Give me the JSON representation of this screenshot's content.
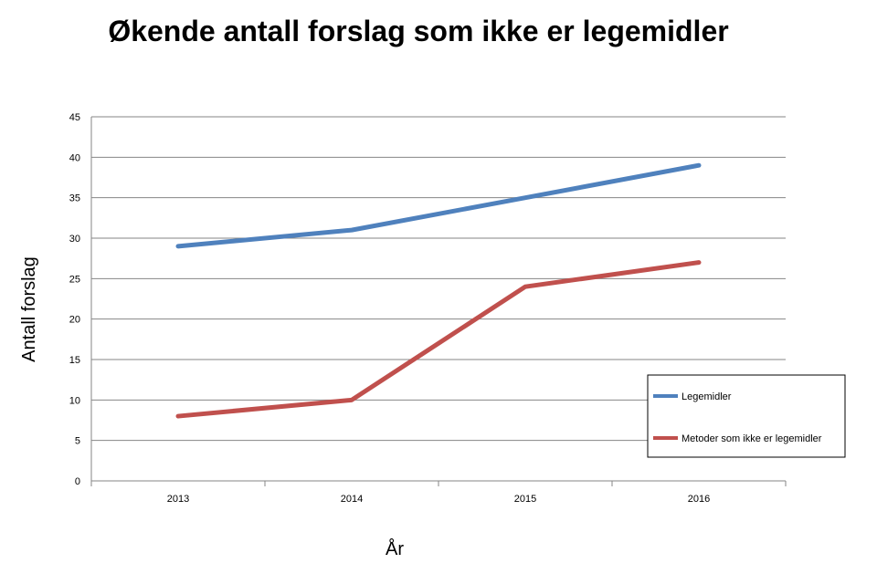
{
  "chart_data": {
    "type": "line",
    "title": "Økende antall forslag som ikke er legemidler",
    "xlabel": "År",
    "ylabel": "Antall forslag",
    "categories": [
      "2013",
      "2014",
      "2015",
      "2016"
    ],
    "ylim": [
      0,
      45
    ],
    "yticks": [
      0,
      5,
      10,
      15,
      20,
      25,
      30,
      35,
      40,
      45
    ],
    "grid": true,
    "legend_position": "right",
    "series": [
      {
        "name": "Legemidler",
        "values": [
          29,
          31,
          35,
          39
        ],
        "color": "#4F81BD"
      },
      {
        "name": "Metoder som ikke er legemidler",
        "values": [
          8,
          10,
          24,
          27
        ],
        "color": "#C0504D"
      }
    ]
  }
}
